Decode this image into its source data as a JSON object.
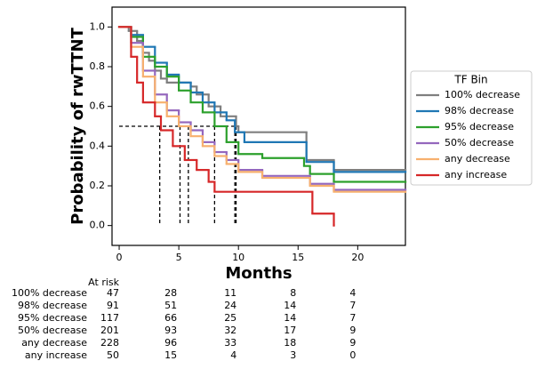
{
  "chart_data": {
    "type": "km",
    "xlabel": "Months",
    "ylabel": "Probability of rwTTNT",
    "xlim": [
      -0.6,
      24
    ],
    "ylim": [
      -0.1,
      1.1
    ],
    "xticks": [
      0,
      5,
      10,
      15,
      20
    ],
    "yticks": [
      {
        "value": 0,
        "label": "0.0"
      },
      0.2,
      0.4,
      0.6,
      0.8,
      {
        "value": 1,
        "label": "1.0"
      }
    ],
    "median_level": 0.5,
    "legend_title": "TF Bin",
    "legend_position": "right",
    "series": [
      {
        "name": "100% decrease",
        "color": "#7f7f7f",
        "median": 9.8,
        "x": [
          0,
          0.8,
          1.5,
          2,
          2.5,
          3,
          3.5,
          4,
          6,
          6.5,
          7.5,
          8.5,
          9.8,
          10,
          15.7,
          18,
          24
        ],
        "values": [
          1,
          0.98,
          0.93,
          0.87,
          0.83,
          0.78,
          0.74,
          0.72,
          0.7,
          0.66,
          0.6,
          0.55,
          0.5,
          0.47,
          0.33,
          0.28,
          0.28
        ]
      },
      {
        "name": "98% decrease",
        "color": "#1f77b4",
        "median": 9.7,
        "x": [
          0,
          1,
          2,
          3,
          4,
          5,
          6,
          7,
          8,
          9,
          9.7,
          10.5,
          15.7,
          18,
          24
        ],
        "values": [
          1,
          0.96,
          0.9,
          0.82,
          0.76,
          0.72,
          0.67,
          0.62,
          0.57,
          0.53,
          0.47,
          0.42,
          0.32,
          0.27,
          0.27
        ]
      },
      {
        "name": "95% decrease",
        "color": "#2ca02c",
        "median": 8.0,
        "x": [
          0,
          1,
          2,
          3,
          4,
          5,
          6,
          7,
          8,
          9,
          10,
          12,
          15.5,
          16,
          18,
          24
        ],
        "values": [
          1,
          0.95,
          0.85,
          0.8,
          0.75,
          0.68,
          0.62,
          0.57,
          0.5,
          0.42,
          0.36,
          0.34,
          0.3,
          0.26,
          0.22,
          0.22
        ]
      },
      {
        "name": "50% decrease",
        "color": "#9467bd",
        "median": 5.8,
        "x": [
          0,
          1,
          2,
          3,
          4,
          5,
          6,
          7,
          8,
          9,
          10,
          12,
          16,
          18,
          24
        ],
        "values": [
          1,
          0.92,
          0.78,
          0.66,
          0.58,
          0.52,
          0.48,
          0.42,
          0.37,
          0.33,
          0.28,
          0.25,
          0.21,
          0.18,
          0.18
        ]
      },
      {
        "name": "any decrease",
        "color": "#f7b06e",
        "median": 5.1,
        "x": [
          0,
          1,
          2,
          3,
          4,
          5,
          6,
          7,
          8,
          9,
          10,
          12,
          16,
          18,
          24
        ],
        "values": [
          1,
          0.9,
          0.75,
          0.62,
          0.55,
          0.5,
          0.45,
          0.4,
          0.35,
          0.31,
          0.27,
          0.24,
          0.2,
          0.17,
          0.17
        ]
      },
      {
        "name": "any increase",
        "color": "#d62728",
        "median": 3.4,
        "x": [
          0,
          1,
          1.5,
          2,
          3,
          3.5,
          4.5,
          5.5,
          6.5,
          7.5,
          8,
          16.2,
          18
        ],
        "values": [
          1,
          0.85,
          0.72,
          0.62,
          0.55,
          0.48,
          0.4,
          0.33,
          0.28,
          0.22,
          0.17,
          0.06,
          0
        ]
      }
    ],
    "risk_table": {
      "title": "At risk",
      "rows": [
        {
          "label": "100% decrease",
          "counts": [
            47,
            28,
            11,
            8,
            4
          ]
        },
        {
          "label": "98% decrease",
          "counts": [
            91,
            51,
            24,
            14,
            7
          ]
        },
        {
          "label": "95% decrease",
          "counts": [
            117,
            66,
            25,
            14,
            7
          ]
        },
        {
          "label": "50% decrease",
          "counts": [
            201,
            93,
            32,
            17,
            9
          ]
        },
        {
          "label": "any decrease",
          "counts": [
            228,
            96,
            33,
            18,
            9
          ]
        },
        {
          "label": "any increase",
          "counts": [
            50,
            15,
            4,
            3,
            0
          ]
        }
      ]
    }
  }
}
